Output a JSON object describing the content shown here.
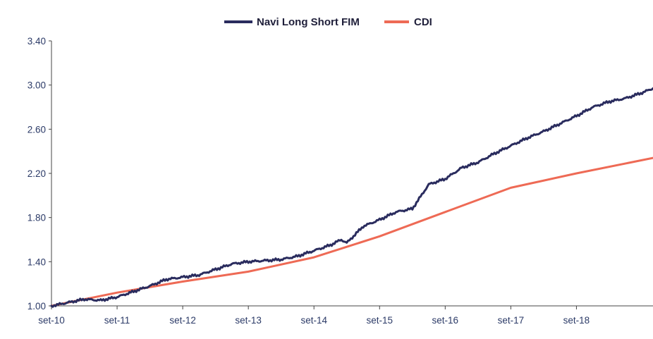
{
  "chart_data": {
    "type": "line",
    "title": "",
    "xlabel": "",
    "ylabel": "",
    "x_ticks": [
      "set-10",
      "set-11",
      "set-12",
      "set-13",
      "set-14",
      "set-15",
      "set-16",
      "set-17",
      "set-18"
    ],
    "y_ticks": [
      "1.00",
      "1.40",
      "1.80",
      "2.20",
      "2.60",
      "3.00",
      "3.40"
    ],
    "ylim": [
      1.0,
      3.4
    ],
    "xlim": [
      "2010-09",
      "2019-11"
    ],
    "legend_position": "top-center",
    "grid": false,
    "colors": {
      "navi": "#2a2c5e",
      "cdi": "#ee6a55",
      "axis": "#444444",
      "tick_text": "#2b3a67"
    },
    "series": [
      {
        "name": "Navi Long Short FIM",
        "color": "#2a2c5e",
        "x": [
          "2010-09",
          "2010-12",
          "2011-03",
          "2011-06",
          "2011-09",
          "2011-12",
          "2012-03",
          "2012-06",
          "2012-09",
          "2012-12",
          "2013-03",
          "2013-06",
          "2013-09",
          "2013-12",
          "2014-03",
          "2014-06",
          "2014-09",
          "2014-12",
          "2015-02",
          "2015-03",
          "2015-06",
          "2015-09",
          "2015-12",
          "2016-03",
          "2016-06",
          "2016-09",
          "2016-12",
          "2017-03",
          "2017-06",
          "2017-09",
          "2017-12",
          "2018-03",
          "2018-06",
          "2018-09",
          "2018-12",
          "2019-03",
          "2019-06",
          "2019-09",
          "2019-11"
        ],
        "values": [
          1.0,
          1.03,
          1.06,
          1.05,
          1.08,
          1.13,
          1.18,
          1.24,
          1.26,
          1.28,
          1.33,
          1.38,
          1.4,
          1.41,
          1.42,
          1.45,
          1.5,
          1.55,
          1.6,
          1.57,
          1.72,
          1.78,
          1.85,
          1.88,
          2.1,
          2.15,
          2.25,
          2.3,
          2.38,
          2.45,
          2.52,
          2.58,
          2.65,
          2.72,
          2.8,
          2.85,
          2.88,
          2.93,
          2.97
        ]
      },
      {
        "name": "CDI",
        "color": "#ee6a55",
        "x": [
          "2010-09",
          "2011-09",
          "2012-09",
          "2013-09",
          "2014-09",
          "2015-09",
          "2016-09",
          "2017-09",
          "2018-09",
          "2019-11"
        ],
        "values": [
          1.0,
          1.12,
          1.22,
          1.31,
          1.44,
          1.63,
          1.85,
          2.07,
          2.2,
          2.34
        ]
      }
    ]
  }
}
